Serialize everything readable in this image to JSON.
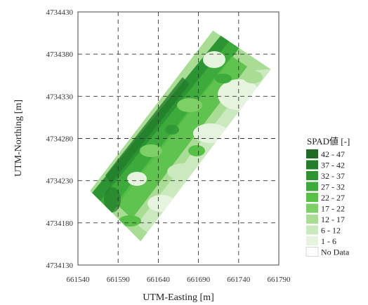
{
  "chart_data": {
    "type": "heatmap",
    "xlabel": "UTM-Easting [m]",
    "ylabel": "UTM-Northing [m]",
    "xlim": [
      661540,
      661790
    ],
    "ylim": [
      4734130,
      4734430
    ],
    "x_ticks": [
      "661540",
      "661590",
      "661640",
      "661690",
      "661740",
      "661790"
    ],
    "y_ticks": [
      "4734130",
      "4734180",
      "4734230",
      "4734280",
      "4734330",
      "4734380",
      "4734430"
    ],
    "grid": true,
    "grid_style": "dashed",
    "legend": {
      "title": "SPAD値 [-]",
      "placement": "right",
      "entries": [
        {
          "label": "42 - 47",
          "color": "#1f6b23"
        },
        {
          "label": "37 - 42",
          "color": "#237d2a"
        },
        {
          "label": "32 - 37",
          "color": "#2d9433"
        },
        {
          "label": "27 - 32",
          "color": "#3cab3c"
        },
        {
          "label": "22 - 27",
          "color": "#58bf47"
        },
        {
          "label": "17 - 22",
          "color": "#7fcf67"
        },
        {
          "label": "12 - 17",
          "color": "#a9dd95"
        },
        {
          "label": "  6 - 12",
          "color": "#cbe9be"
        },
        {
          "label": "  1 -  6",
          "color": "#e6f4df"
        },
        {
          "label": "No Data",
          "color": "#ffffff"
        }
      ]
    },
    "field_outline_utm": [
      [
        661555,
        4734218
      ],
      [
        661708,
        4734408
      ],
      [
        661780,
        4734362
      ],
      [
        661618,
        4734158
      ]
    ]
  }
}
